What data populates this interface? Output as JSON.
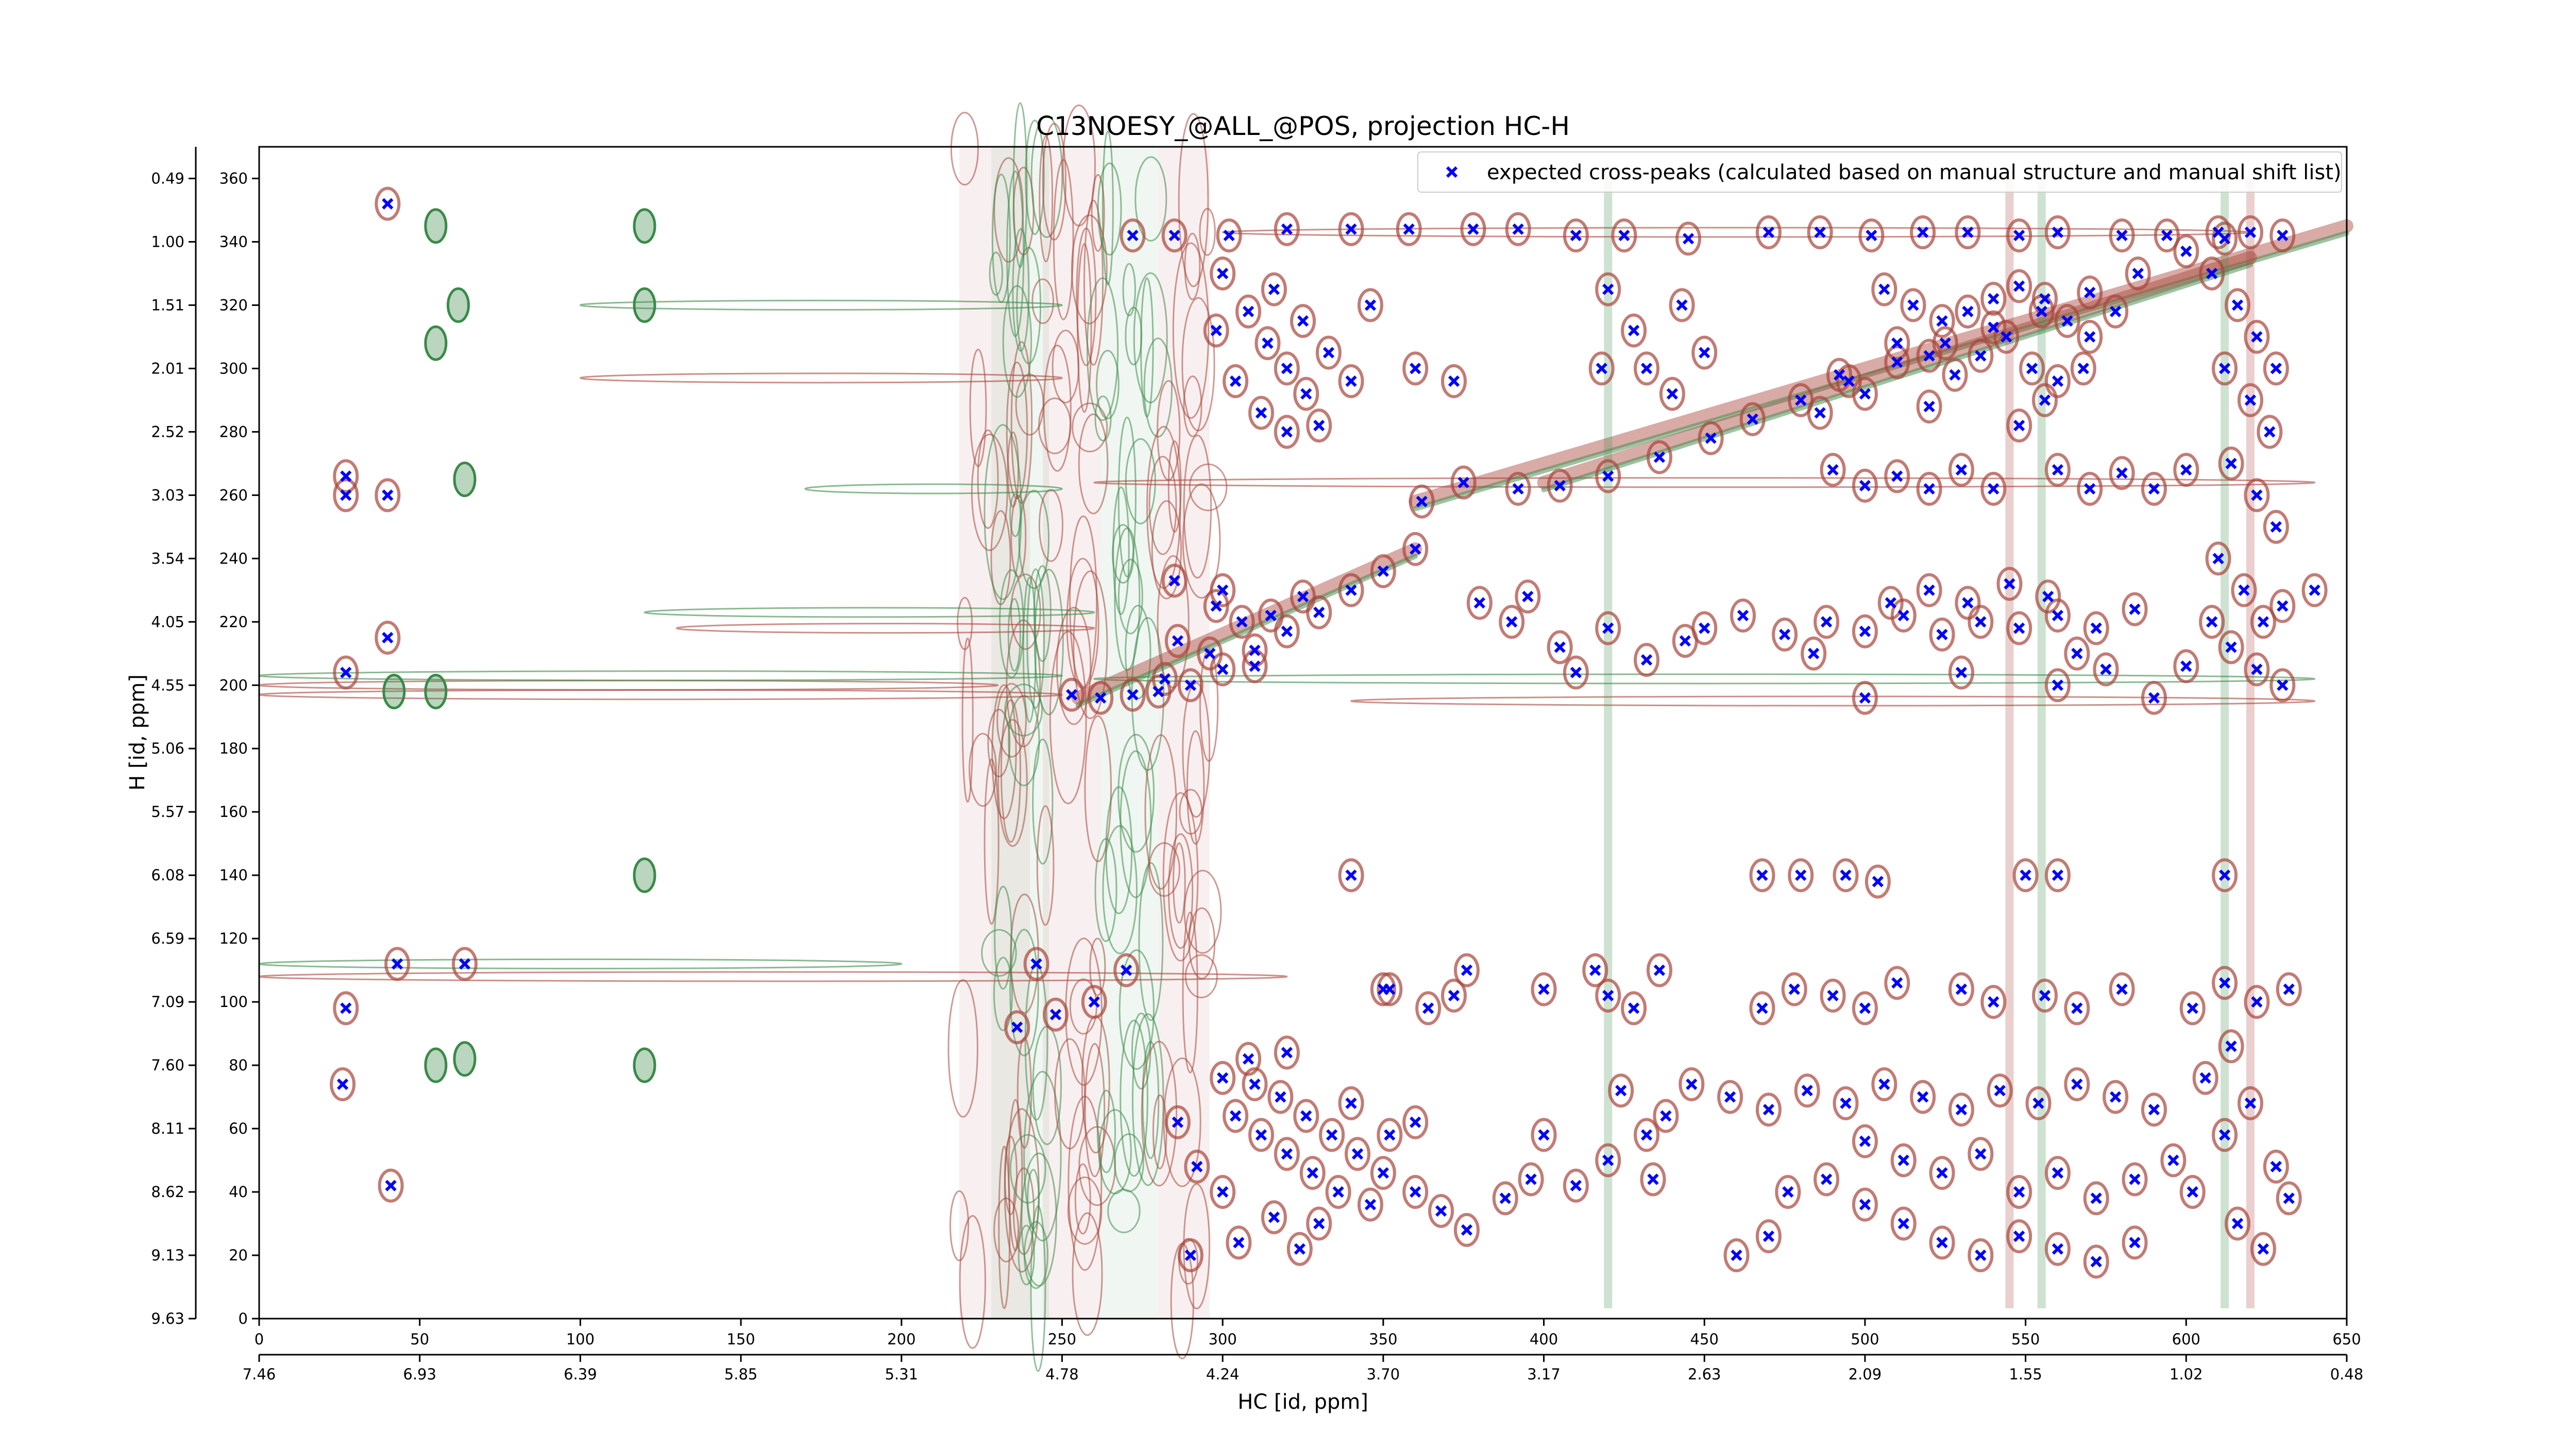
{
  "chart_data": {
    "type": "scatter",
    "title": "C13NOESY_@ALL_@POS, projection HC-H",
    "xlabel": "HC [id, ppm]",
    "ylabel": "H [id, ppm]",
    "x_index_range": [
      0,
      650
    ],
    "y_index_range": [
      0,
      370
    ],
    "x_index_ticks": [
      "0",
      "50",
      "100",
      "150",
      "200",
      "250",
      "300",
      "350",
      "400",
      "450",
      "500",
      "550",
      "600",
      "650"
    ],
    "x_ppm_ticks": [
      "7.46",
      "6.93",
      "6.39",
      "5.85",
      "5.31",
      "4.78",
      "4.24",
      "3.70",
      "3.17",
      "2.63",
      "2.09",
      "1.55",
      "1.02",
      "0.48"
    ],
    "y_index_ticks": [
      "0",
      "20",
      "40",
      "60",
      "80",
      "100",
      "120",
      "140",
      "160",
      "180",
      "200",
      "220",
      "240",
      "260",
      "280",
      "300",
      "320",
      "340",
      "360"
    ],
    "y_ppm_ticks": [
      "9.63",
      "9.13",
      "8.62",
      "8.11",
      "7.60",
      "7.09",
      "6.59",
      "6.08",
      "5.57",
      "5.06",
      "4.55",
      "4.05",
      "3.54",
      "3.03",
      "2.52",
      "2.01",
      "1.51",
      "1.00",
      "0.49"
    ],
    "legend": {
      "label": "expected cross-peaks (calculated based on manual structure and manual shift list)",
      "placement": "top-right"
    },
    "grid": false,
    "colors": {
      "positive_contour": "#a8453a",
      "negative_contour": "#3a8a48",
      "expected_peak": "#0000ff"
    },
    "series": [
      {
        "name": "expected cross-peaks (calculated based on manual structure and manual shift list)",
        "marker": "x",
        "points": [
          [
            40,
            352
          ],
          [
            27,
            266
          ],
          [
            27,
            260
          ],
          [
            40,
            260
          ],
          [
            40,
            215
          ],
          [
            27,
            204
          ],
          [
            41,
            42
          ],
          [
            27,
            98
          ],
          [
            43,
            112
          ],
          [
            64,
            112
          ],
          [
            26,
            74
          ],
          [
            253,
            197
          ],
          [
            262,
            196
          ],
          [
            272,
            197
          ],
          [
            280,
            198
          ],
          [
            290,
            200
          ],
          [
            300,
            205
          ],
          [
            310,
            211
          ],
          [
            320,
            217
          ],
          [
            330,
            223
          ],
          [
            340,
            230
          ],
          [
            350,
            236
          ],
          [
            360,
            243
          ],
          [
            285,
            233
          ],
          [
            298,
            225
          ],
          [
            315,
            222
          ],
          [
            325,
            228
          ],
          [
            362,
            258
          ],
          [
            375,
            264
          ],
          [
            392,
            262
          ],
          [
            405,
            263
          ],
          [
            420,
            266
          ],
          [
            436,
            272
          ],
          [
            452,
            278
          ],
          [
            465,
            284
          ],
          [
            480,
            290
          ],
          [
            495,
            296
          ],
          [
            510,
            302
          ],
          [
            525,
            308
          ],
          [
            540,
            313
          ],
          [
            555,
            318
          ],
          [
            570,
            324
          ],
          [
            585,
            330
          ],
          [
            600,
            337
          ],
          [
            612,
            341
          ],
          [
            272,
            342
          ],
          [
            285,
            342
          ],
          [
            302,
            342
          ],
          [
            320,
            344
          ],
          [
            340,
            344
          ],
          [
            358,
            344
          ],
          [
            378,
            344
          ],
          [
            392,
            344
          ],
          [
            410,
            342
          ],
          [
            425,
            342
          ],
          [
            445,
            341
          ],
          [
            470,
            343
          ],
          [
            486,
            343
          ],
          [
            502,
            342
          ],
          [
            518,
            343
          ],
          [
            532,
            343
          ],
          [
            548,
            342
          ],
          [
            560,
            343
          ],
          [
            580,
            342
          ],
          [
            594,
            342
          ],
          [
            610,
            343
          ],
          [
            620,
            343
          ],
          [
            630,
            342
          ],
          [
            300,
            330
          ],
          [
            308,
            318
          ],
          [
            314,
            308
          ],
          [
            320,
            300
          ],
          [
            326,
            292
          ],
          [
            304,
            296
          ],
          [
            312,
            286
          ],
          [
            320,
            280
          ],
          [
            330,
            282
          ],
          [
            316,
            325
          ],
          [
            325,
            315
          ],
          [
            333,
            305
          ],
          [
            340,
            296
          ],
          [
            298,
            312
          ],
          [
            346,
            320
          ],
          [
            360,
            300
          ],
          [
            372,
            296
          ],
          [
            420,
            325
          ],
          [
            428,
            312
          ],
          [
            432,
            300
          ],
          [
            440,
            292
          ],
          [
            418,
            300
          ],
          [
            443,
            320
          ],
          [
            450,
            305
          ],
          [
            506,
            325
          ],
          [
            515,
            320
          ],
          [
            524,
            315
          ],
          [
            532,
            318
          ],
          [
            540,
            322
          ],
          [
            548,
            326
          ],
          [
            556,
            322
          ],
          [
            563,
            315
          ],
          [
            570,
            310
          ],
          [
            578,
            318
          ],
          [
            510,
            308
          ],
          [
            520,
            304
          ],
          [
            528,
            298
          ],
          [
            536,
            304
          ],
          [
            544,
            310
          ],
          [
            552,
            300
          ],
          [
            560,
            296
          ],
          [
            568,
            300
          ],
          [
            500,
            292
          ],
          [
            492,
            298
          ],
          [
            486,
            286
          ],
          [
            548,
            282
          ],
          [
            556,
            290
          ],
          [
            520,
            288
          ],
          [
            608,
            330
          ],
          [
            616,
            320
          ],
          [
            622,
            310
          ],
          [
            628,
            300
          ],
          [
            612,
            300
          ],
          [
            620,
            290
          ],
          [
            626,
            280
          ],
          [
            614,
            270
          ],
          [
            622,
            260
          ],
          [
            628,
            250
          ],
          [
            610,
            240
          ],
          [
            618,
            230
          ],
          [
            624,
            220
          ],
          [
            614,
            212
          ],
          [
            622,
            205
          ],
          [
            630,
            200
          ],
          [
            608,
            220
          ],
          [
            630,
            225
          ],
          [
            560,
            268
          ],
          [
            570,
            262
          ],
          [
            580,
            267
          ],
          [
            590,
            262
          ],
          [
            600,
            268
          ],
          [
            540,
            262
          ],
          [
            530,
            268
          ],
          [
            520,
            262
          ],
          [
            510,
            266
          ],
          [
            500,
            263
          ],
          [
            490,
            268
          ],
          [
            450,
            218
          ],
          [
            462,
            222
          ],
          [
            475,
            216
          ],
          [
            488,
            220
          ],
          [
            500,
            217
          ],
          [
            512,
            222
          ],
          [
            524,
            216
          ],
          [
            536,
            220
          ],
          [
            548,
            218
          ],
          [
            560,
            222
          ],
          [
            572,
            218
          ],
          [
            584,
            224
          ],
          [
            520,
            230
          ],
          [
            532,
            226
          ],
          [
            545,
            232
          ],
          [
            557,
            228
          ],
          [
            508,
            226
          ],
          [
            566,
            210
          ],
          [
            560,
            200
          ],
          [
            530,
            204
          ],
          [
            500,
            196
          ],
          [
            484,
            210
          ],
          [
            590,
            196
          ],
          [
            600,
            206
          ],
          [
            575,
            205
          ],
          [
            640,
            230
          ],
          [
            390,
            220
          ],
          [
            405,
            212
          ],
          [
            420,
            218
          ],
          [
            432,
            208
          ],
          [
            444,
            214
          ],
          [
            380,
            226
          ],
          [
            395,
            228
          ],
          [
            410,
            204
          ],
          [
            300,
            230
          ],
          [
            306,
            220
          ],
          [
            296,
            210
          ],
          [
            310,
            206
          ],
          [
            286,
            214
          ],
          [
            282,
            202
          ],
          [
            300,
            76
          ],
          [
            310,
            74
          ],
          [
            318,
            70
          ],
          [
            326,
            64
          ],
          [
            334,
            58
          ],
          [
            342,
            52
          ],
          [
            350,
            46
          ],
          [
            360,
            40
          ],
          [
            368,
            34
          ],
          [
            376,
            28
          ],
          [
            304,
            64
          ],
          [
            312,
            58
          ],
          [
            320,
            52
          ],
          [
            328,
            46
          ],
          [
            336,
            40
          ],
          [
            292,
            48
          ],
          [
            286,
            62
          ],
          [
            300,
            40
          ],
          [
            316,
            32
          ],
          [
            330,
            30
          ],
          [
            308,
            82
          ],
          [
            320,
            84
          ],
          [
            340,
            68
          ],
          [
            352,
            58
          ],
          [
            360,
            62
          ],
          [
            346,
            36
          ],
          [
            290,
            20
          ],
          [
            305,
            24
          ],
          [
            324,
            22
          ],
          [
            446,
            74
          ],
          [
            458,
            70
          ],
          [
            470,
            66
          ],
          [
            482,
            72
          ],
          [
            494,
            68
          ],
          [
            506,
            74
          ],
          [
            518,
            70
          ],
          [
            530,
            66
          ],
          [
            542,
            72
          ],
          [
            554,
            68
          ],
          [
            566,
            74
          ],
          [
            578,
            70
          ],
          [
            590,
            66
          ],
          [
            500,
            56
          ],
          [
            512,
            50
          ],
          [
            524,
            46
          ],
          [
            536,
            52
          ],
          [
            548,
            40
          ],
          [
            560,
            46
          ],
          [
            572,
            38
          ],
          [
            584,
            44
          ],
          [
            476,
            40
          ],
          [
            488,
            44
          ],
          [
            500,
            36
          ],
          [
            512,
            30
          ],
          [
            524,
            24
          ],
          [
            536,
            20
          ],
          [
            548,
            26
          ],
          [
            560,
            22
          ],
          [
            572,
            18
          ],
          [
            584,
            24
          ],
          [
            460,
            20
          ],
          [
            470,
            26
          ],
          [
            596,
            50
          ],
          [
            602,
            40
          ],
          [
            612,
            58
          ],
          [
            620,
            68
          ],
          [
            628,
            48
          ],
          [
            632,
            38
          ],
          [
            616,
            30
          ],
          [
            624,
            22
          ],
          [
            606,
            76
          ],
          [
            614,
            86
          ],
          [
            410,
            42
          ],
          [
            420,
            50
          ],
          [
            432,
            58
          ],
          [
            438,
            64
          ],
          [
            424,
            72
          ],
          [
            400,
            58
          ],
          [
            396,
            44
          ],
          [
            388,
            38
          ],
          [
            434,
            44
          ],
          [
            468,
            98
          ],
          [
            478,
            104
          ],
          [
            490,
            102
          ],
          [
            500,
            98
          ],
          [
            510,
            106
          ],
          [
            530,
            104
          ],
          [
            540,
            100
          ],
          [
            556,
            102
          ],
          [
            566,
            98
          ],
          [
            580,
            104
          ],
          [
            602,
            98
          ],
          [
            612,
            106
          ],
          [
            622,
            100
          ],
          [
            632,
            104
          ],
          [
            400,
            104
          ],
          [
            416,
            110
          ],
          [
            428,
            98
          ],
          [
            420,
            102
          ],
          [
            436,
            110
          ],
          [
            352,
            104
          ],
          [
            364,
            98
          ],
          [
            372,
            102
          ],
          [
            376,
            110
          ],
          [
            468,
            140
          ],
          [
            480,
            140
          ],
          [
            494,
            140
          ],
          [
            504,
            138
          ],
          [
            550,
            140
          ],
          [
            560,
            140
          ],
          [
            612,
            140
          ],
          [
            340,
            140
          ],
          [
            350,
            104
          ],
          [
            260,
            100
          ],
          [
            270,
            110
          ],
          [
            242,
            112
          ],
          [
            236,
            92
          ],
          [
            248,
            96
          ]
        ]
      }
    ]
  }
}
